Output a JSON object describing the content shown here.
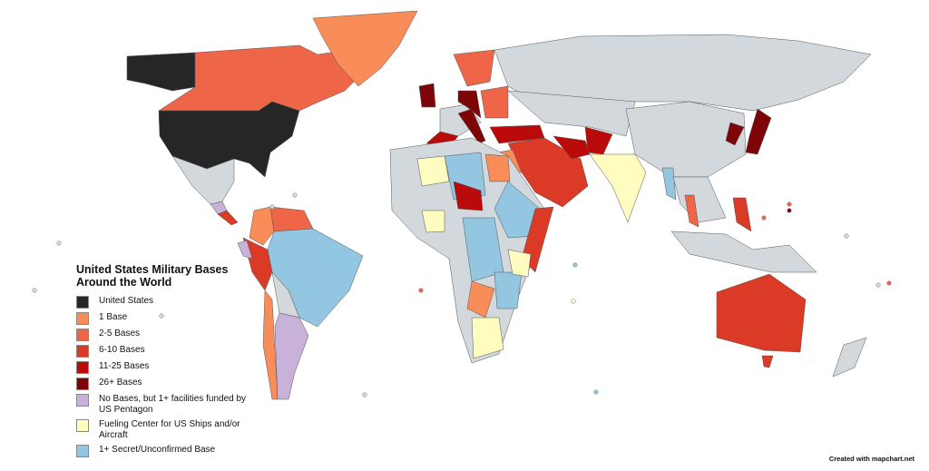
{
  "legend": {
    "title": "United States Military Bases Around the World",
    "items": [
      {
        "label": "United States",
        "color": "#262626"
      },
      {
        "label": "1 Base",
        "color": "#f98d5a"
      },
      {
        "label": "2-5 Bases",
        "color": "#ee6548"
      },
      {
        "label": "6-10 Bases",
        "color": "#da3a26"
      },
      {
        "label": "11-25 Bases",
        "color": "#bb0a0a"
      },
      {
        "label": "26+ Bases",
        "color": "#7d0508"
      },
      {
        "label": "No Bases, but 1+ facilities funded by US Pentagon",
        "color": "#c9b2d9"
      },
      {
        "label": "Fueling Center for US Ships and/or Aircraft",
        "color": "#fefcbe"
      },
      {
        "label": "1+ Secret/Unconfirmed Base",
        "color": "#93c6e0"
      }
    ]
  },
  "no_data_color": "#d2d8db",
  "credit": "Created with mapchart.net"
}
